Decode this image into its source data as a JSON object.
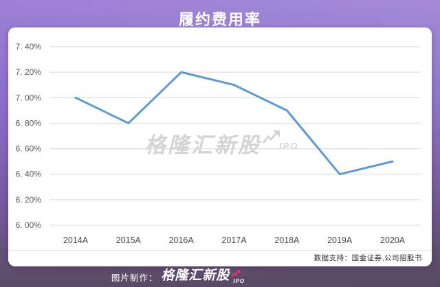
{
  "title": "履约费用率",
  "watermark": {
    "text": "格隆汇新股",
    "suffix": "IPO"
  },
  "source_note": "数据支持：国金证券,公司招股书",
  "footer": {
    "prefix": "图片制作：",
    "brand": "格隆汇新股",
    "brand_suffix": "IPO"
  },
  "colors": {
    "line": "#5b9bd5",
    "grid": "#d9d9d9",
    "axis_text": "#595959",
    "background_top": "#9c80d5",
    "background_bottom": "#584962",
    "brand_arrow": "#e8336d",
    "watermark": "#d4d4d4"
  },
  "chart_data": {
    "type": "line",
    "title": "履约费用率",
    "categories": [
      "2014A",
      "2015A",
      "2016A",
      "2017A",
      "2018A",
      "2019A",
      "2020A"
    ],
    "values": [
      7.0,
      6.8,
      7.2,
      7.1,
      6.9,
      6.4,
      6.5
    ],
    "xlabel": "",
    "ylabel": "",
    "ylim": [
      6.0,
      7.4
    ],
    "ytick_step": 0.2,
    "ytick_labels": [
      "7. 40%",
      "7. 20%",
      "7. 00%",
      "6. 80%",
      "6. 60%",
      "6. 40%",
      "6. 20%",
      "6. 00%"
    ],
    "grid": true,
    "legend": false
  }
}
